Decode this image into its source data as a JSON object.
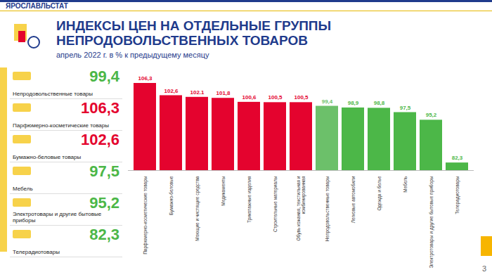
{
  "header": {
    "organization": "ЯРОСЛАВЛЬСТАТ",
    "page": "3"
  },
  "summary": [
    {
      "label": "Непродовольственные товары",
      "value": "99,4",
      "color": "#4cb748"
    },
    {
      "label": "Парфюмерно-косметические  товары",
      "value": "106,3",
      "color": "#e4032e"
    },
    {
      "label": "Бумажно-беловые  товары",
      "value": "102,6",
      "color": "#e4032e"
    },
    {
      "label": "Мебель",
      "value": "97,5",
      "color": "#4cb748"
    },
    {
      "label": "Электротовары и другие бытовые приборы",
      "value": "95,2",
      "color": "#4cb748"
    },
    {
      "label": "Телерадиотовары",
      "value": "82,3",
      "color": "#4cb748"
    }
  ],
  "chart_data": {
    "type": "bar",
    "title": "ИНДЕКСЫ ЦЕН НА ОТДЕЛЬНЫЕ ГРУППЫ НЕПРОДОВОЛЬСТВЕННЫХ  ТОВАРОВ",
    "subtitle": "апрель  2022 г. в % к предыдущему  месяцу",
    "categories": [
      "Парфюмерно-косметические товары",
      "Бумажно-беловые",
      "Моющие и чистящие средства",
      "Медикаменты",
      "Трикотажные изделия",
      "Строительные материалы",
      "Обувь кожаная, текстильная и комбинированная",
      "Непродовольственные товары",
      "Легковые автомобили",
      "Одежда и белье",
      "Мебель",
      "Электротовары и другие бытовые приборы",
      "Телерадиотовары"
    ],
    "values": [
      106.3,
      102.6,
      102.1,
      101.8,
      100.6,
      100.5,
      100.5,
      99.4,
      98.9,
      98.8,
      97.5,
      95.2,
      82.3
    ],
    "value_labels": [
      "106,3",
      "102,6",
      "102.1",
      "101,8",
      "100,6",
      "100,5",
      "100,5",
      "99,4",
      "98,9",
      "98,8",
      "97,5",
      "95,2",
      "82,3"
    ],
    "colors": [
      "#e4032e",
      "#e4032e",
      "#e4032e",
      "#e4032e",
      "#e4032e",
      "#e4032e",
      "#e4032e",
      "#6cc06a",
      "#4cb748",
      "#4cb748",
      "#4cb748",
      "#4cb748",
      "#4cb748"
    ],
    "ylim": [
      80,
      106.3
    ],
    "data_labels": true,
    "tick_labels": "x"
  }
}
